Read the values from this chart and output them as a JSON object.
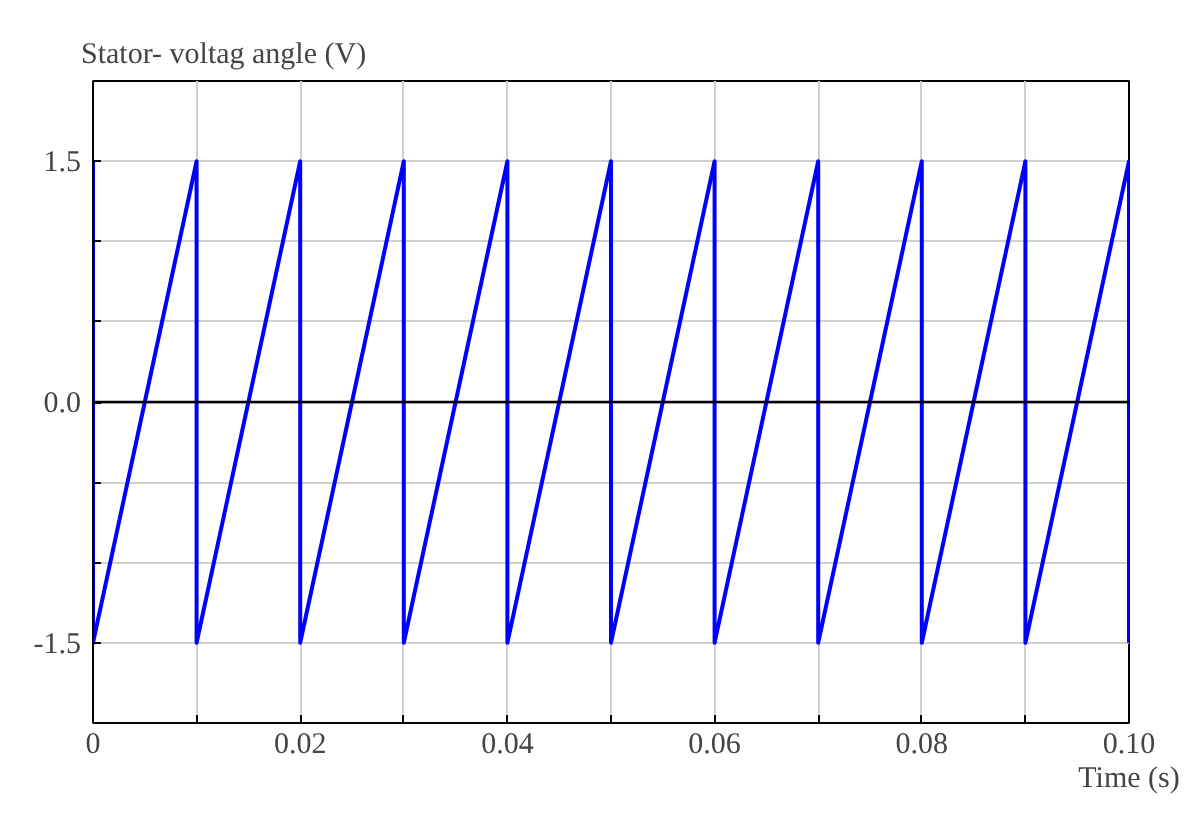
{
  "chart_data": {
    "type": "line",
    "title": "Stator- voltag angle (V)",
    "xlabel": "Time (s)",
    "x": [
      0,
      0,
      0.005,
      0.01,
      0.01,
      0.015,
      0.02,
      0.02,
      0.025,
      0.03,
      0.03,
      0.035,
      0.04,
      0.04,
      0.045,
      0.05,
      0.05,
      0.055,
      0.06,
      0.06,
      0.065,
      0.07,
      0.07,
      0.075,
      0.08,
      0.08,
      0.085,
      0.09,
      0.09,
      0.095,
      0.1,
      0.1
    ],
    "series": [
      {
        "color": "#0000ff",
        "values": [
          1.5,
          -1.5,
          0,
          1.5,
          -1.5,
          0,
          1.5,
          -1.5,
          0,
          1.5,
          -1.5,
          0,
          1.5,
          -1.5,
          0,
          1.5,
          -1.5,
          0,
          1.5,
          -1.5,
          0,
          1.5,
          -1.5,
          0,
          1.5,
          -1.5,
          0,
          1.5,
          -1.5,
          0,
          1.5,
          -1.5
        ]
      }
    ],
    "xlim": [
      0,
      0.1
    ],
    "ylim": [
      -2,
      2
    ],
    "xticks": [
      0,
      {
        "value": 0.01,
        "label": null
      },
      "0.02",
      {
        "value": 0.03,
        "label": null
      },
      0.04,
      {
        "value": 0.05,
        "label": null
      },
      0.06,
      {
        "value": 0.07,
        "label": null
      },
      0.08,
      {
        "value": 0.09,
        "label": null
      },
      {
        "value": 0.1,
        "label": "0.10"
      }
    ],
    "yticks": [
      {
        "value": -1.5,
        "label": "-1.5"
      },
      {
        "value": -1.0,
        "label": null
      },
      {
        "value": -0.5,
        "label": null
      },
      {
        "value": 0,
        "label": "0.0"
      },
      {
        "value": 0.5,
        "label": null
      },
      {
        "value": 1.0,
        "label": null
      },
      1.5
    ],
    "ref_lines": [
      {
        "axis": "y",
        "value": 0,
        "color": "#000000"
      }
    ],
    "grid": true,
    "line_style": "solid"
  }
}
